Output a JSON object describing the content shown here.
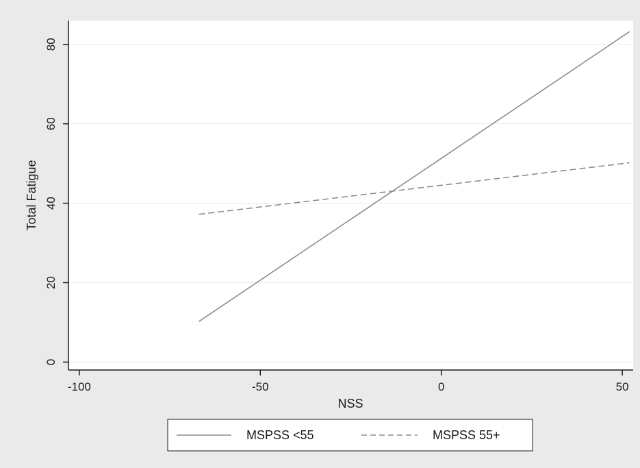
{
  "chart_data": {
    "type": "line",
    "title": "",
    "xlabel": "NSS",
    "ylabel": "Total Fatigue",
    "xlim": [
      -103,
      53
    ],
    "ylim": [
      -2,
      86
    ],
    "xticks": [
      -100,
      -50,
      0,
      50
    ],
    "yticks": [
      0,
      20,
      40,
      60,
      80
    ],
    "x_tick_labels": [
      "-100",
      "-50",
      "0",
      "50"
    ],
    "y_tick_labels": [
      "0",
      "20",
      "40",
      "60",
      "80"
    ],
    "grid": true,
    "legend_position": "bottom",
    "series": [
      {
        "name": "MSPSS <55",
        "style": "solid",
        "color": "#8c8c8c",
        "x": [
          -67,
          52
        ],
        "y": [
          10.2,
          83.2
        ]
      },
      {
        "name": "MSPSS 55+",
        "style": "dashed",
        "color": "#8c8c8c",
        "x": [
          -67,
          52
        ],
        "y": [
          37.2,
          50.2
        ]
      }
    ]
  },
  "colors": {
    "outer_background": "#eaeaea",
    "plot_background": "#ffffff",
    "grid": "#ececec",
    "axis": "#1a1a1a"
  }
}
